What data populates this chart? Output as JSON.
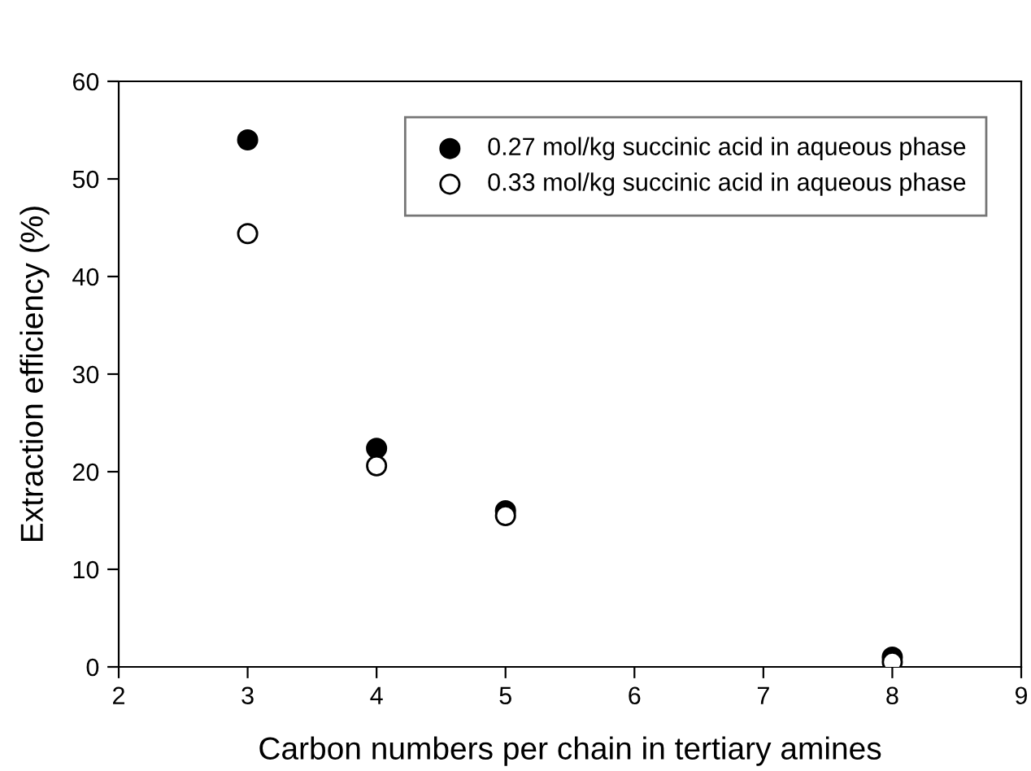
{
  "chart_data": {
    "type": "scatter",
    "xlabel": "Carbon numbers per chain in tertiary amines",
    "ylabel": "Extraction efficiency (%)",
    "x": [
      3,
      4,
      5,
      8
    ],
    "series": [
      {
        "name": "0.27 mol/kg succinic acid in aqueous phase",
        "color": "#000000",
        "values": [
          54.0,
          22.4,
          16.0,
          1.0
        ]
      },
      {
        "name": "0.33 mol/kg succinic acid in aqueous phase",
        "color": "#ffffff",
        "values": [
          44.4,
          20.6,
          15.5,
          0.5
        ]
      }
    ],
    "xlim": [
      2,
      9
    ],
    "ylim": [
      0,
      60
    ],
    "xticks": [
      2,
      3,
      4,
      5,
      6,
      7,
      8,
      9
    ],
    "yticks": [
      0,
      10,
      20,
      30,
      40,
      50,
      60
    ],
    "marker": "circle",
    "legend": "top right",
    "grid": false
  }
}
